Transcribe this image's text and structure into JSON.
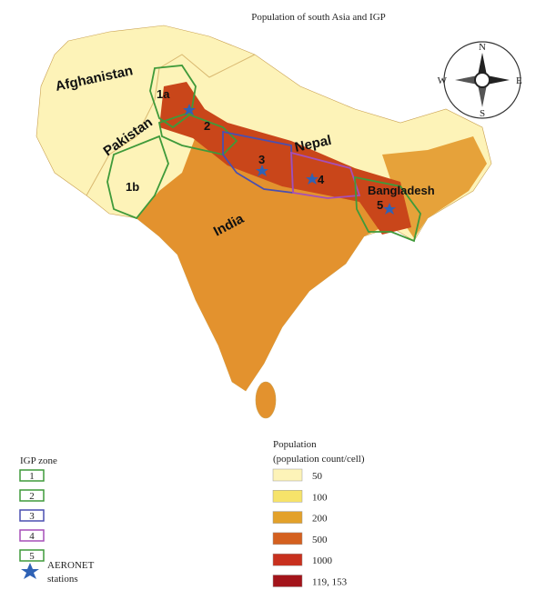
{
  "title": "Population of south Asia and IGP",
  "compass": {
    "n": "N",
    "e": "E",
    "s": "S",
    "w": "W"
  },
  "map_labels": [
    "Afghanistan",
    "Pakistan",
    "Nepal",
    "India",
    "Bangladesh"
  ],
  "zone_labels": [
    "1a",
    "1b",
    "2",
    "3",
    "4",
    "5"
  ],
  "igp_legend": {
    "title": "IGP zone",
    "items": [
      {
        "label": "1",
        "color": "#3f9a3a"
      },
      {
        "label": "2",
        "color": "#3f9a3a"
      },
      {
        "label": "3",
        "color": "#4a4fb0"
      },
      {
        "label": "4",
        "color": "#a64fb8"
      },
      {
        "label": "5",
        "color": "#3f9a3a"
      }
    ],
    "station_label": [
      "AERONET",
      "stations"
    ],
    "station_color": "#2f62b5"
  },
  "population_legend": {
    "title": "Population",
    "subtitle": "(population count/cell)",
    "items": [
      {
        "label": "50",
        "color": "#fdf3b8"
      },
      {
        "label": "100",
        "color": "#f6e36a"
      },
      {
        "label": "200",
        "color": "#e3a12a"
      },
      {
        "label": "500",
        "color": "#d4601f"
      },
      {
        "label": "1000",
        "color": "#c8301e"
      },
      {
        "label": "119, 153",
        "color": "#a3141a"
      }
    ]
  }
}
